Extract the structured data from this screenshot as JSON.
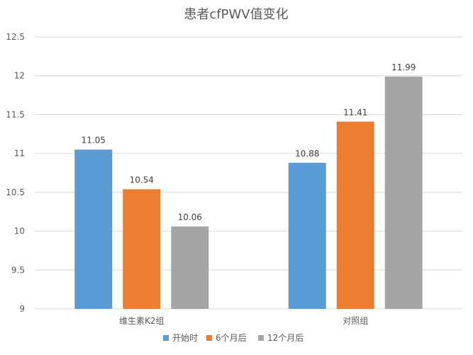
{
  "chart_data": {
    "type": "bar",
    "title": "患者cfPWV值变化",
    "xlabel": "",
    "ylabel": "",
    "ylim": [
      9,
      12.5
    ],
    "ytick_step": 0.5,
    "yticks": [
      "9",
      "9.5",
      "10",
      "10.5",
      "11",
      "11.5",
      "12",
      "12.5"
    ],
    "categories": [
      "维生素K2组",
      "对照组"
    ],
    "series": [
      {
        "name": "开始时",
        "color": "#5b9bd5",
        "values": [
          11.05,
          10.88
        ]
      },
      {
        "name": "6个月后",
        "color": "#ed7d31",
        "values": [
          10.54,
          11.41
        ]
      },
      {
        "name": "12个月后",
        "color": "#a5a5a5",
        "values": [
          10.06,
          11.99
        ]
      }
    ],
    "data_labels": [
      [
        "11.05",
        "10.88"
      ],
      [
        "10.54",
        "11.41"
      ],
      [
        "10.06",
        "11.99"
      ]
    ],
    "grid": true,
    "legend_position": "bottom"
  }
}
